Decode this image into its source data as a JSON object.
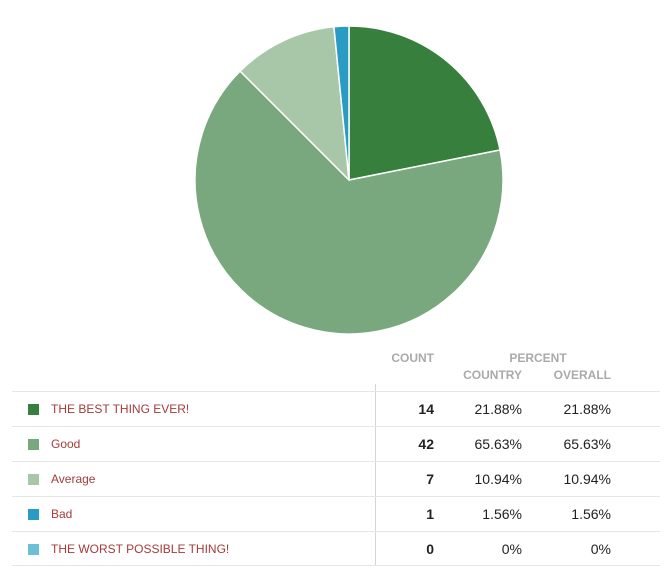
{
  "colors": {
    "slice_0": "#367f3d",
    "slice_1": "#7aa87e",
    "slice_2": "#a7c7a8",
    "slice_3": "#2a9cc3",
    "slice_4": "#6cc0d6",
    "label_text": "#a63b3b",
    "header_text": "#aaaaaa"
  },
  "table": {
    "headers": {
      "count": "COUNT",
      "percent": "PERCENT",
      "country": "COUNTRY",
      "overall": "OVERALL"
    },
    "rows": [
      {
        "label": "THE BEST THING EVER!",
        "count": "14",
        "country": "21.88%",
        "overall": "21.88%"
      },
      {
        "label": "Good",
        "count": "42",
        "country": "65.63%",
        "overall": "65.63%"
      },
      {
        "label": "Average",
        "count": "7",
        "country": "10.94%",
        "overall": "10.94%"
      },
      {
        "label": "Bad",
        "count": "1",
        "country": "1.56%",
        "overall": "1.56%"
      },
      {
        "label": "THE WORST POSSIBLE THING!",
        "count": "0",
        "country": "0%",
        "overall": "0%"
      }
    ]
  },
  "chart_data": {
    "type": "pie",
    "title": "",
    "categories": [
      "THE BEST THING EVER!",
      "Good",
      "Average",
      "Bad",
      "THE WORST POSSIBLE THING!"
    ],
    "values": [
      14,
      42,
      7,
      1,
      0
    ],
    "colors": [
      "#367f3d",
      "#7aa87e",
      "#a7c7a8",
      "#2a9cc3",
      "#6cc0d6"
    ],
    "start": "12 o'clock, clockwise"
  }
}
